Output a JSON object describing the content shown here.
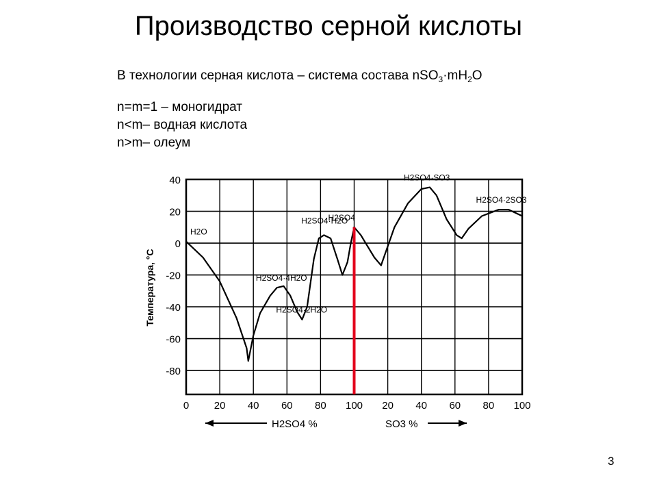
{
  "slide": {
    "title": "Производство серной кислоты",
    "intro": {
      "prefix": "В технологии серная кислота – система состава nSO",
      "sub1": "3",
      "mid": "·mH",
      "sub2": "2",
      "suffix": "O"
    },
    "definitions": [
      "n=m=1   – моногидрат",
      "n<m– водная кислота",
      "n>m– олеум"
    ],
    "page_number": "3"
  },
  "colors": {
    "curve": "#000000",
    "marker": "#e3001b"
  },
  "chart_data": {
    "type": "line",
    "ylabel": "Температура, °С",
    "ylim": [
      -95,
      40
    ],
    "yticks": [
      40,
      20,
      0,
      -20,
      -40,
      -60,
      -80
    ],
    "xlim": [
      0,
      200
    ],
    "x_tick_labels": [
      "0",
      "20",
      "40",
      "60",
      "80",
      "100",
      "20",
      "40",
      "60",
      "80",
      "100"
    ],
    "xaxis_label_left": "H2SO4 %",
    "xaxis_label_right": "SO3 %",
    "x_note": "x: 0–100 = H2SO4 %, 100–200 = SO3 % (offset +100)",
    "grid": true,
    "series": [
      {
        "values": [
          [
            0,
            1
          ],
          [
            10,
            -9
          ],
          [
            20,
            -24
          ],
          [
            30,
            -47
          ],
          [
            36,
            -66
          ],
          [
            37,
            -74
          ],
          [
            40,
            -58
          ],
          [
            44,
            -44
          ],
          [
            50,
            -33
          ],
          [
            54,
            -28
          ],
          [
            58,
            -27
          ],
          [
            62,
            -33
          ],
          [
            66,
            -43
          ],
          [
            69,
            -48
          ],
          [
            72,
            -40
          ],
          [
            76,
            -10
          ],
          [
            79,
            3
          ],
          [
            82,
            5
          ],
          [
            86,
            3
          ],
          [
            90,
            -10
          ],
          [
            93,
            -20
          ],
          [
            96,
            -12
          ],
          [
            98,
            0
          ],
          [
            100,
            10
          ],
          [
            104,
            5
          ],
          [
            108,
            -2
          ],
          [
            112,
            -9
          ],
          [
            116,
            -14
          ],
          [
            118,
            -8
          ],
          [
            124,
            10
          ],
          [
            132,
            25
          ],
          [
            140,
            34
          ],
          [
            145,
            35
          ],
          [
            149,
            30
          ],
          [
            155,
            15
          ],
          [
            161,
            5
          ],
          [
            164,
            3
          ],
          [
            168,
            9
          ],
          [
            176,
            17
          ],
          [
            186,
            21
          ],
          [
            192,
            21
          ],
          [
            200,
            17
          ]
        ]
      }
    ],
    "compounds": [
      {
        "name": "H2O",
        "x": 0,
        "y": 1
      },
      {
        "name": "H2SO4·4H2O",
        "x": 57,
        "y": -28
      },
      {
        "name": "H2SO4·2H2O",
        "x": 69,
        "y": -48
      },
      {
        "name": "H2SO4·H2O",
        "x": 84,
        "y": 8
      },
      {
        "name": "H2SO4",
        "x": 100,
        "y": 10
      },
      {
        "name": "H2SO4·SO3",
        "x": 145,
        "y": 35
      },
      {
        "name": "H2SO4·2SO3",
        "x": 188,
        "y": 21
      }
    ],
    "marker": {
      "x": 100,
      "label": "H2SO4 100%"
    }
  }
}
